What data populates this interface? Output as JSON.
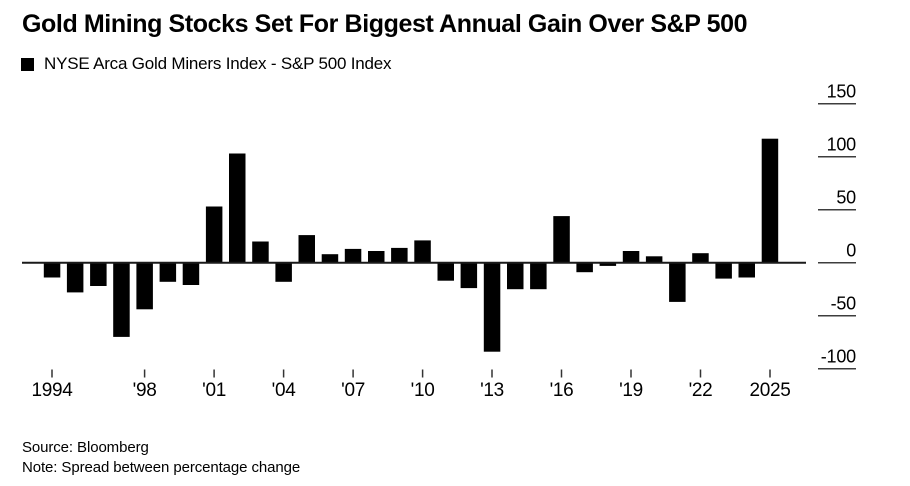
{
  "header": {
    "title": "Gold Mining Stocks Set For Biggest Annual Gain Over S&P 500"
  },
  "legend": {
    "label": "NYSE Arca Gold Miners Index - S&P 500 Index",
    "swatch_color": "#000000"
  },
  "chart_data": {
    "type": "bar",
    "title": "Gold Mining Stocks Set For Biggest Annual Gain Over S&P 500",
    "series_name": "NYSE Arca Gold Miners Index - S&P 500 Index",
    "categories": [
      1994,
      1995,
      1996,
      1997,
      1998,
      1999,
      2000,
      2001,
      2002,
      2003,
      2004,
      2005,
      2006,
      2007,
      2008,
      2009,
      2010,
      2011,
      2012,
      2013,
      2014,
      2015,
      2016,
      2017,
      2018,
      2019,
      2020,
      2021,
      2022,
      2023,
      2024,
      2025
    ],
    "values": [
      -14,
      -28,
      -22,
      -70,
      -44,
      -18,
      -21,
      53,
      103,
      20,
      -18,
      26,
      8,
      13,
      11,
      14,
      21,
      -17,
      -24,
      -84,
      -25,
      -25,
      44,
      -9,
      -3,
      11,
      6,
      -37,
      9,
      -15,
      -14,
      117
    ],
    "bar_color": "#000000",
    "xlabel": "",
    "ylabel": "",
    "ylim": [
      -115,
      155
    ],
    "yticks": [
      150,
      100,
      50,
      0,
      -50,
      -100
    ],
    "xticks": [
      {
        "year": 1994,
        "label": "1994"
      },
      {
        "year": 1998,
        "label": "'98"
      },
      {
        "year": 2001,
        "label": "'01"
      },
      {
        "year": 2004,
        "label": "'04"
      },
      {
        "year": 2007,
        "label": "'07"
      },
      {
        "year": 2010,
        "label": "'10"
      },
      {
        "year": 2013,
        "label": "'13"
      },
      {
        "year": 2016,
        "label": "'16"
      },
      {
        "year": 2019,
        "label": "'19"
      },
      {
        "year": 2022,
        "label": "'22"
      },
      {
        "year": 2025,
        "label": "2025"
      }
    ],
    "legend_position": "top-left",
    "grid": "right-side y tick segments only, zero baseline across plot"
  },
  "footer": {
    "source": "Source: Bloomberg",
    "note": "Note: Spread between percentage change"
  }
}
